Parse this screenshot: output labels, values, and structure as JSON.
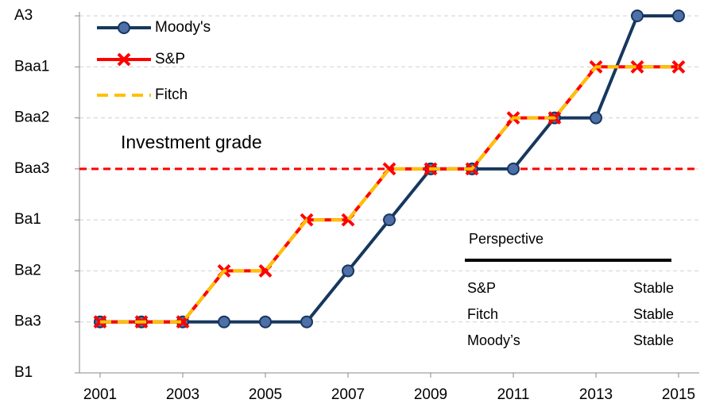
{
  "chart_data": {
    "type": "line",
    "x": [
      2001,
      2002,
      2003,
      2004,
      2005,
      2006,
      2007,
      2008,
      2009,
      2010,
      2011,
      2012,
      2013,
      2014,
      2015
    ],
    "xlim": [
      2000.5,
      2015.5
    ],
    "xticks": [
      2001,
      2003,
      2005,
      2007,
      2009,
      2011,
      2013,
      2015
    ],
    "ylim": [
      0,
      7
    ],
    "yticks": [
      {
        "value": 0,
        "label": "B1"
      },
      {
        "value": 1,
        "label": "Ba3"
      },
      {
        "value": 2,
        "label": "Ba2"
      },
      {
        "value": 3,
        "label": "Ba1"
      },
      {
        "value": 4,
        "label": "Baa3"
      },
      {
        "value": 5,
        "label": "Baa2"
      },
      {
        "value": 6,
        "label": "Baa1"
      },
      {
        "value": 7,
        "label": "A3"
      }
    ],
    "grid": true,
    "legend": "upper left",
    "series": [
      {
        "name": "Moody's",
        "color": "#17375e",
        "marker": "circle",
        "values": [
          1,
          1,
          1,
          1,
          1,
          1,
          2,
          3,
          4,
          4,
          4,
          5,
          5,
          7,
          7
        ]
      },
      {
        "name": "S&P",
        "color": "#ff0000",
        "marker": "x",
        "values": [
          1,
          1,
          1,
          2,
          2,
          3,
          3,
          4,
          4,
          4,
          5,
          5,
          6,
          6,
          6
        ]
      },
      {
        "name": "Fitch",
        "color": "#ffc000",
        "dashed": true,
        "values": [
          1,
          1,
          1,
          2,
          2,
          3,
          3,
          4,
          4,
          4,
          5,
          5,
          6,
          6,
          6
        ]
      }
    ],
    "reference_line": {
      "value": 4,
      "label": "Investment grade",
      "color": "#ff0000"
    },
    "table": {
      "title": "Perspective",
      "rows": [
        [
          "S&P",
          "Stable"
        ],
        [
          "Fitch",
          "Stable"
        ],
        [
          "Moody’s",
          "Stable"
        ]
      ]
    }
  }
}
